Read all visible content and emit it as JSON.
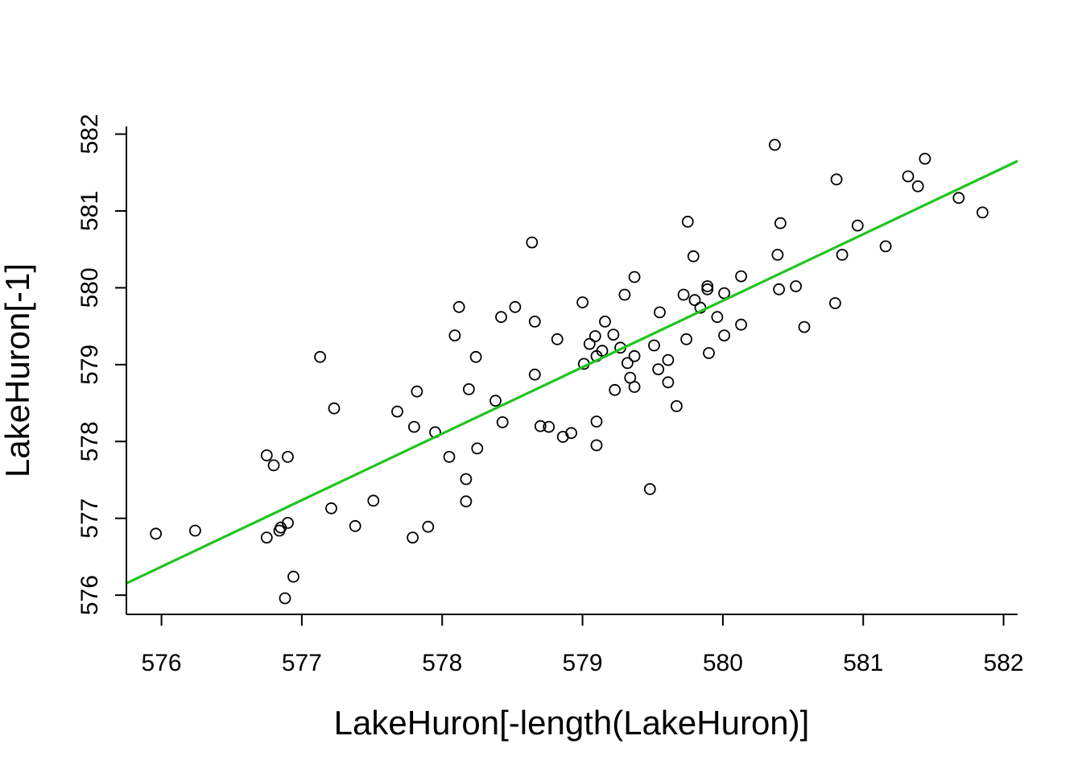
{
  "chart_data": {
    "type": "scatter",
    "title": "",
    "xlabel": "LakeHuron[-length(LakeHuron)]",
    "ylabel": "LakeHuron[-1]",
    "xlim": [
      575.75,
      582.1
    ],
    "ylim": [
      575.75,
      582.1
    ],
    "x_ticks": [
      576,
      577,
      578,
      579,
      580,
      581,
      582
    ],
    "y_ticks": [
      576,
      577,
      578,
      579,
      580,
      581,
      582
    ],
    "x_tick_labels": [
      "576",
      "577",
      "578",
      "579",
      "580",
      "581",
      "582"
    ],
    "y_tick_labels": [
      "576",
      "577",
      "578",
      "579",
      "580",
      "581",
      "582"
    ],
    "grid": false,
    "legend": "none",
    "colors": {
      "points": "#000000",
      "fit_line": "#1fc41f"
    },
    "regression_line": {
      "intercept": 77.9,
      "slope": 0.8654,
      "x_from": 575.75,
      "x_to": 582.1
    },
    "points": [
      [
        575.96,
        576.8
      ],
      [
        576.24,
        576.84
      ],
      [
        576.75,
        577.82
      ],
      [
        576.8,
        577.69
      ],
      [
        576.9,
        577.8
      ],
      [
        576.75,
        576.75
      ],
      [
        576.85,
        576.88
      ],
      [
        576.84,
        576.84
      ],
      [
        576.9,
        576.94
      ],
      [
        576.94,
        576.24
      ],
      [
        576.88,
        575.96
      ],
      [
        577.13,
        579.1
      ],
      [
        577.23,
        578.43
      ],
      [
        577.21,
        577.13
      ],
      [
        577.38,
        576.9
      ],
      [
        577.51,
        577.23
      ],
      [
        577.68,
        578.39
      ],
      [
        577.8,
        578.19
      ],
      [
        577.82,
        578.65
      ],
      [
        577.79,
        576.75
      ],
      [
        577.9,
        576.89
      ],
      [
        577.95,
        578.12
      ],
      [
        578.05,
        577.8
      ],
      [
        578.09,
        579.38
      ],
      [
        578.12,
        579.75
      ],
      [
        578.17,
        577.51
      ],
      [
        578.17,
        577.22
      ],
      [
        578.19,
        578.68
      ],
      [
        578.24,
        579.1
      ],
      [
        578.25,
        577.91
      ],
      [
        578.38,
        578.53
      ],
      [
        578.42,
        579.62
      ],
      [
        578.43,
        578.25
      ],
      [
        578.52,
        579.75
      ],
      [
        578.64,
        580.59
      ],
      [
        578.66,
        578.87
      ],
      [
        578.66,
        579.56
      ],
      [
        578.7,
        578.2
      ],
      [
        578.76,
        578.19
      ],
      [
        578.82,
        579.33
      ],
      [
        578.86,
        578.06
      ],
      [
        578.92,
        578.11
      ],
      [
        579.0,
        579.81
      ],
      [
        579.01,
        579.01
      ],
      [
        579.05,
        579.27
      ],
      [
        579.09,
        579.37
      ],
      [
        579.1,
        579.11
      ],
      [
        579.1,
        578.26
      ],
      [
        579.1,
        577.95
      ],
      [
        579.14,
        579.18
      ],
      [
        579.16,
        579.56
      ],
      [
        579.22,
        579.39
      ],
      [
        579.23,
        578.67
      ],
      [
        579.27,
        579.22
      ],
      [
        579.3,
        579.91
      ],
      [
        579.32,
        579.02
      ],
      [
        579.34,
        578.83
      ],
      [
        579.37,
        578.71
      ],
      [
        579.37,
        579.11
      ],
      [
        579.37,
        580.14
      ],
      [
        579.48,
        577.38
      ],
      [
        579.51,
        579.25
      ],
      [
        579.54,
        578.94
      ],
      [
        579.55,
        579.68
      ],
      [
        579.61,
        579.06
      ],
      [
        579.61,
        578.77
      ],
      [
        579.67,
        578.46
      ],
      [
        579.72,
        579.91
      ],
      [
        579.74,
        579.33
      ],
      [
        579.75,
        580.86
      ],
      [
        579.79,
        580.41
      ],
      [
        579.8,
        579.84
      ],
      [
        579.84,
        579.74
      ],
      [
        579.89,
        579.98
      ],
      [
        579.89,
        580.02
      ],
      [
        579.9,
        579.15
      ],
      [
        579.96,
        579.62
      ],
      [
        580.01,
        579.93
      ],
      [
        580.01,
        579.38
      ],
      [
        580.13,
        580.15
      ],
      [
        580.13,
        579.52
      ],
      [
        580.37,
        581.86
      ],
      [
        580.39,
        580.43
      ],
      [
        580.4,
        579.98
      ],
      [
        580.41,
        580.84
      ],
      [
        580.52,
        580.02
      ],
      [
        580.58,
        579.49
      ],
      [
        580.8,
        579.8
      ],
      [
        580.81,
        581.41
      ],
      [
        580.85,
        580.43
      ],
      [
        580.96,
        580.81
      ],
      [
        581.16,
        580.54
      ],
      [
        581.32,
        581.45
      ],
      [
        581.39,
        581.32
      ],
      [
        581.44,
        581.68
      ],
      [
        581.68,
        581.17
      ],
      [
        581.85,
        580.98
      ]
    ]
  }
}
